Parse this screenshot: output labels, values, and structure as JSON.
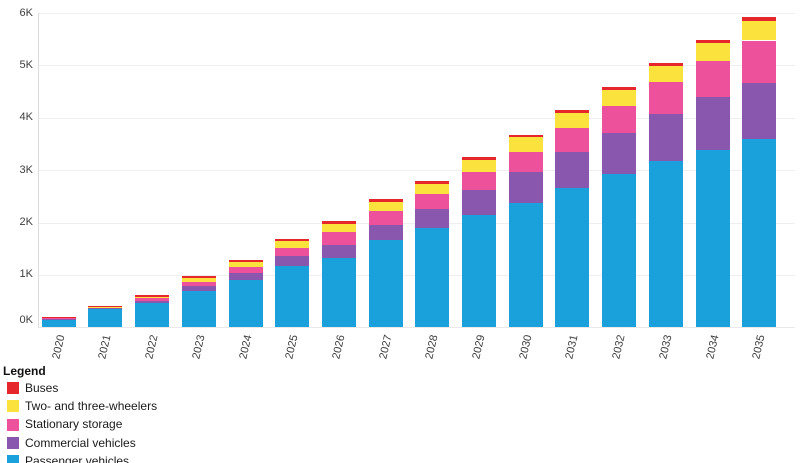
{
  "legend": {
    "title": "Legend"
  },
  "axes": {
    "y_tick_labels": [
      "0K",
      "1K",
      "2K",
      "3K",
      "4K",
      "5K",
      "6K"
    ],
    "x_tick_labels": [
      "2020",
      "2021",
      "2022",
      "2023",
      "2024",
      "2025",
      "2026",
      "2027",
      "2028",
      "2029",
      "2030",
      "2031",
      "2032",
      "2033",
      "2034",
      "2035"
    ]
  },
  "colors": {
    "buses": "#E5262B",
    "two_three_wheelers": "#FBE23D",
    "stationary_storage": "#ED519B",
    "commercial_vehicles": "#8A57AE",
    "passenger_vehicles": "#1AA0DB",
    "grid": "#efefef",
    "axis_line": "#dcdcdc",
    "tick_text": "#3d3d3d"
  },
  "chart_data": {
    "type": "bar",
    "stacked": true,
    "title": "",
    "xlabel": "",
    "ylabel": "",
    "categories": [
      "2020",
      "2021",
      "2022",
      "2023",
      "2024",
      "2025",
      "2026",
      "2027",
      "2028",
      "2029",
      "2030",
      "2031",
      "2032",
      "2033",
      "2034",
      "2035"
    ],
    "series": [
      {
        "name": "Buses",
        "color": "#E5262B",
        "values": [
          13,
          12,
          40,
          40,
          45,
          45,
          50,
          55,
          55,
          55,
          55,
          60,
          60,
          60,
          65,
          65
        ]
      },
      {
        "name": "Two- and three-wheelers",
        "color": "#FBE23D",
        "values": [
          10,
          12,
          35,
          75,
          95,
          140,
          170,
          180,
          190,
          225,
          270,
          285,
          305,
          310,
          340,
          375
        ]
      },
      {
        "name": "Stationary storage",
        "color": "#ED519B",
        "values": [
          12,
          18,
          40,
          80,
          115,
          140,
          235,
          265,
          285,
          350,
          395,
          460,
          510,
          605,
          680,
          810
        ]
      },
      {
        "name": "Commercial vehicles",
        "color": "#8A57AE",
        "values": [
          12,
          15,
          40,
          95,
          130,
          190,
          255,
          290,
          370,
          465,
          580,
          690,
          785,
          890,
          1010,
          1065
        ]
      },
      {
        "name": "Passenger vehicles",
        "color": "#1AA0DB",
        "values": [
          155,
          350,
          470,
          695,
          905,
          1175,
          1320,
          1660,
          1895,
          2150,
          2380,
          2660,
          2925,
          3180,
          3390,
          3600
        ]
      }
    ],
    "stack_order_bottom_to_top": [
      "Passenger vehicles",
      "Commercial vehicles",
      "Stationary storage",
      "Two- and three-wheelers",
      "Buses"
    ],
    "totals": [
      202,
      407,
      625,
      985,
      1290,
      1690,
      2030,
      2450,
      2795,
      3245,
      3680,
      4155,
      4585,
      5045,
      5485,
      5915
    ],
    "y_ticks": [
      0,
      1000,
      2000,
      3000,
      4000,
      5000,
      6000
    ],
    "ylim": [
      0,
      6000
    ],
    "grid": true,
    "legend_position": "bottom-left"
  }
}
